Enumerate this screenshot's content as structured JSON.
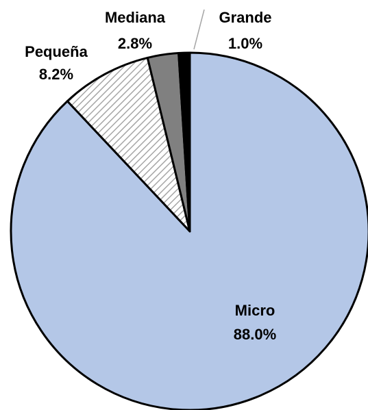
{
  "chart_data": {
    "type": "pie",
    "categories": [
      "Micro",
      "Pequeña",
      "Mediana",
      "Grande"
    ],
    "values": [
      88.0,
      8.2,
      2.8,
      1.0
    ],
    "value_labels": [
      "88.0%",
      "8.2%",
      "2.8%",
      "1.0%"
    ],
    "colors": [
      "#b4c7e7",
      "#ffffff",
      "#808080",
      "#000000"
    ],
    "hatch": [
      false,
      true,
      false,
      false
    ]
  }
}
